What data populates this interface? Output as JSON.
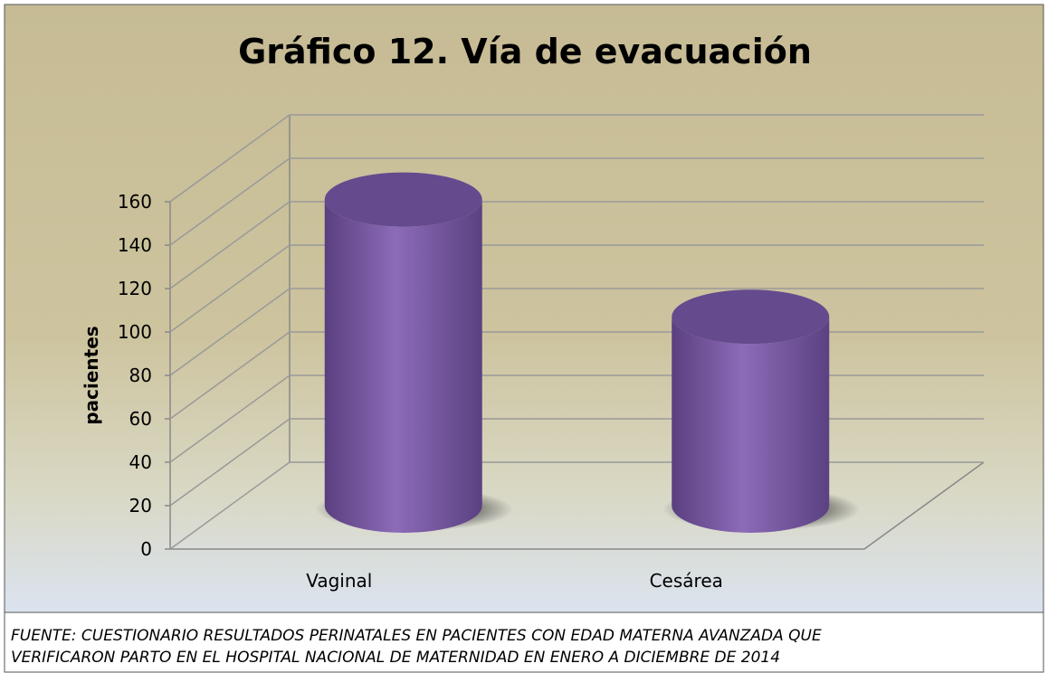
{
  "chart_data": {
    "type": "bar3d",
    "title": "Gráfico 12. Vía de evacuación",
    "y_label": "pacientes",
    "categories": [
      "Vaginal",
      "Cesárea"
    ],
    "values": [
      141,
      87
    ],
    "color": "#7d5fa6",
    "ylim": [
      0,
      160
    ],
    "yticks": [
      0,
      20,
      40,
      60,
      80,
      100,
      120,
      140,
      160
    ],
    "grid": true
  },
  "footer": [
    "FUENTE: CUESTIONARIO RESULTADOS  PERINATALES EN PACIENTES CON EDAD MATERNA AVANZADA QUE",
    "VERIFICARON PARTO EN EL HOSPITAL NACIONAL DE MATERNIDAD EN ENERO A DICIEMBRE DE 2014"
  ]
}
